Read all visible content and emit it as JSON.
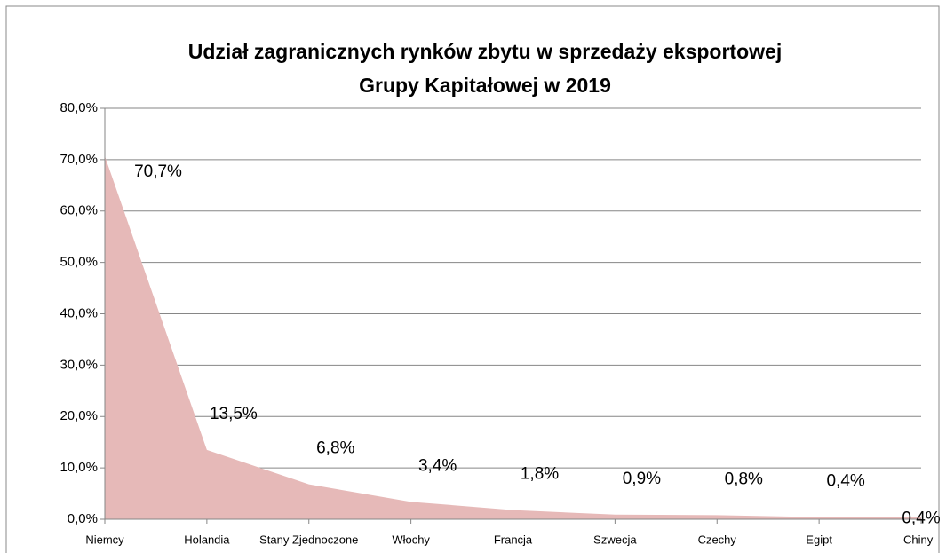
{
  "chart_data": {
    "type": "area",
    "title": [
      "Udział zagranicznych rynków zbytu w sprzedaży eksportowej",
      "Grupy Kapitałowej  w 2019"
    ],
    "categories": [
      "Niemcy",
      "Holandia",
      "Stany Zjednoczone",
      "Włochy",
      "Francja",
      "Szwecja",
      "Czechy",
      "Egipt",
      "Chiny"
    ],
    "values": [
      70.7,
      13.5,
      6.8,
      3.4,
      1.8,
      0.9,
      0.8,
      0.4,
      0.4
    ],
    "value_labels": [
      "70,7%",
      "13,5%",
      "6,8%",
      "3,4%",
      "1,8%",
      "0,9%",
      "0,8%",
      "0,4%",
      "0,4%"
    ],
    "color": "#e6b9b8",
    "ylim": [
      0,
      80
    ],
    "yticks": [
      {
        "value": 0,
        "label": "0,0%"
      },
      {
        "value": 10,
        "label": "10,0%"
      },
      {
        "value": 20,
        "label": "20,0%"
      },
      {
        "value": 30,
        "label": "30,0%"
      },
      {
        "value": 40,
        "label": "40,0%"
      },
      {
        "value": 50,
        "label": "50,0%"
      },
      {
        "value": 60,
        "label": "60,0%"
      },
      {
        "value": 70,
        "label": "70,0%"
      },
      {
        "value": 80,
        "label": "80,0%"
      }
    ],
    "grid": true
  }
}
